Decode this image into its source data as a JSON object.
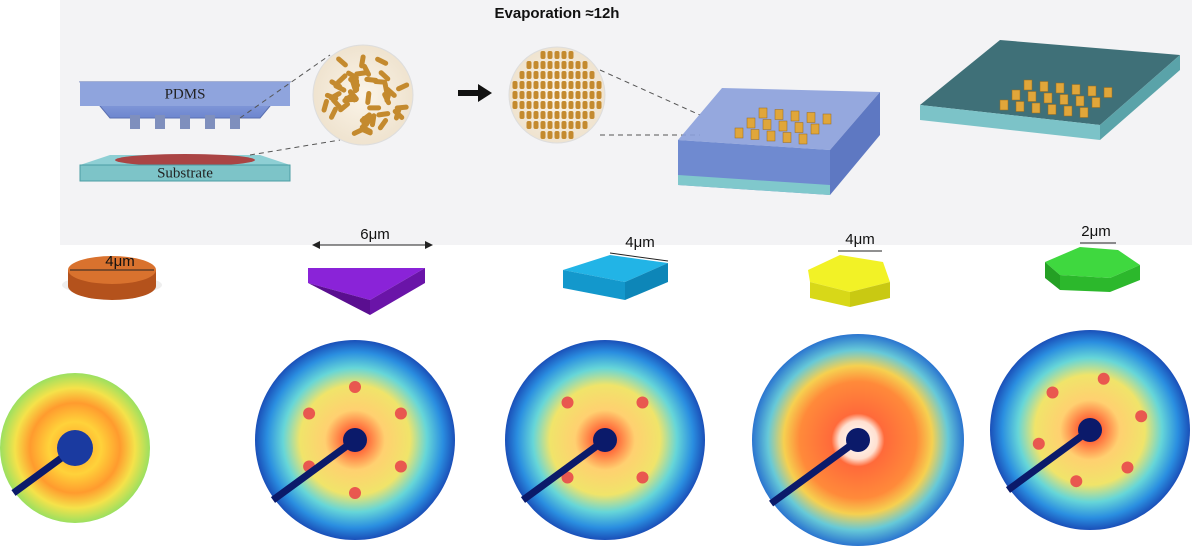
{
  "header": {
    "title": "Evaporation ≈12h"
  },
  "schematic": {
    "mold_label": "PDMS",
    "substrate_label": "Substrate"
  },
  "shapes": [
    {
      "size": "4μm"
    },
    {
      "size": "6μm"
    },
    {
      "size": "4μm"
    },
    {
      "size": "4μm"
    },
    {
      "size": "2μm"
    }
  ]
}
